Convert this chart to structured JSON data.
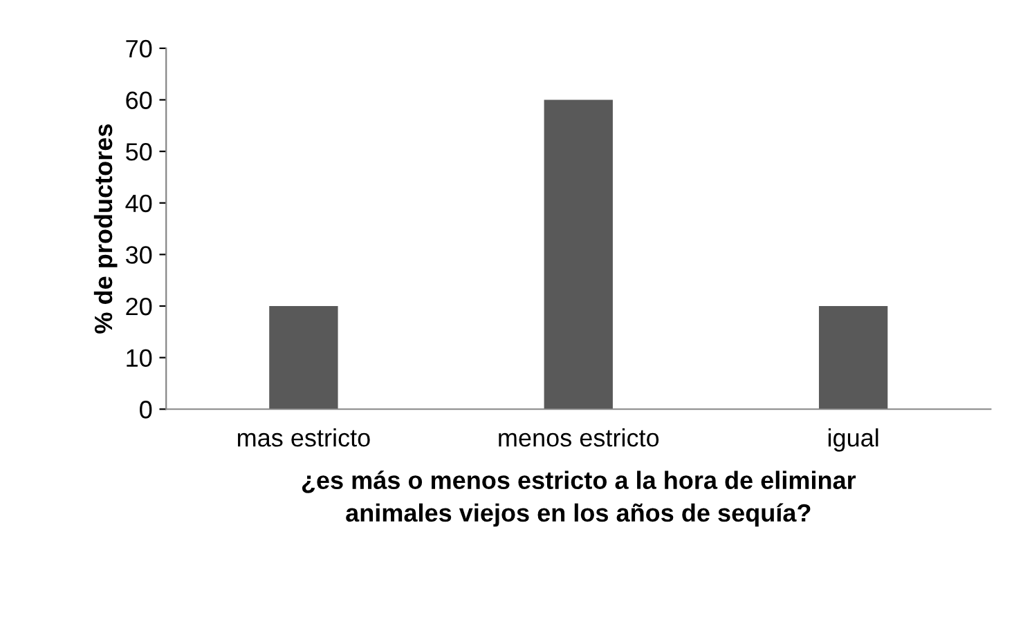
{
  "chart_data": {
    "type": "bar",
    "categories": [
      "mas estricto",
      "menos estricto",
      "igual"
    ],
    "values": [
      20,
      60,
      20
    ],
    "color": "#595959",
    "ylabel": "% de productores",
    "xlabel": "¿es más o menos estricto a la hora de eliminar\nanimales viejos en los años de sequía?",
    "ylim": [
      0,
      70
    ],
    "yticks": [
      0,
      10,
      20,
      30,
      40,
      50,
      60,
      70
    ],
    "grid": false,
    "legend": false
  }
}
